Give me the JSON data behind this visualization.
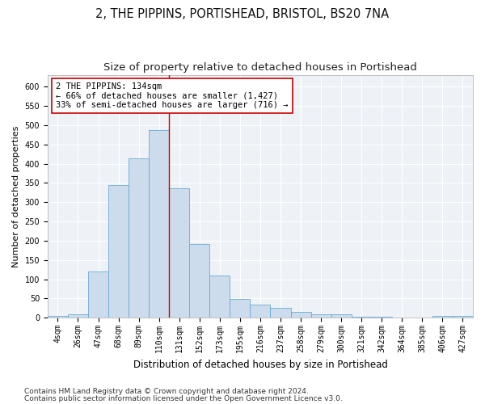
{
  "title1": "2, THE PIPPINS, PORTISHEAD, BRISTOL, BS20 7NA",
  "title2": "Size of property relative to detached houses in Portishead",
  "xlabel": "Distribution of detached houses by size in Portishead",
  "ylabel": "Number of detached properties",
  "categories": [
    "4sqm",
    "26sqm",
    "47sqm",
    "68sqm",
    "89sqm",
    "110sqm",
    "131sqm",
    "152sqm",
    "173sqm",
    "195sqm",
    "216sqm",
    "237sqm",
    "258sqm",
    "279sqm",
    "300sqm",
    "321sqm",
    "342sqm",
    "364sqm",
    "385sqm",
    "406sqm",
    "427sqm"
  ],
  "values": [
    5,
    8,
    120,
    345,
    415,
    487,
    337,
    192,
    110,
    48,
    35,
    25,
    15,
    10,
    8,
    3,
    2,
    1,
    1,
    5,
    5
  ],
  "bar_color": "#ccdcec",
  "bar_edge_color": "#6aaad4",
  "vline_color": "#cc0000",
  "annotation_text": "2 THE PIPPINS: 134sqm\n← 66% of detached houses are smaller (1,427)\n33% of semi-detached houses are larger (716) →",
  "annotation_box_color": "#ffffff",
  "annotation_box_edge": "#cc0000",
  "ylim": [
    0,
    630
  ],
  "yticks": [
    0,
    50,
    100,
    150,
    200,
    250,
    300,
    350,
    400,
    450,
    500,
    550,
    600
  ],
  "footer1": "Contains HM Land Registry data © Crown copyright and database right 2024.",
  "footer2": "Contains public sector information licensed under the Open Government Licence v3.0.",
  "title1_fontsize": 10.5,
  "title2_fontsize": 9.5,
  "xlabel_fontsize": 8.5,
  "ylabel_fontsize": 8,
  "tick_fontsize": 7,
  "annotation_fontsize": 7.5,
  "footer_fontsize": 6.5,
  "vline_xindex": 5.5,
  "bg_color": "#eef2f7"
}
